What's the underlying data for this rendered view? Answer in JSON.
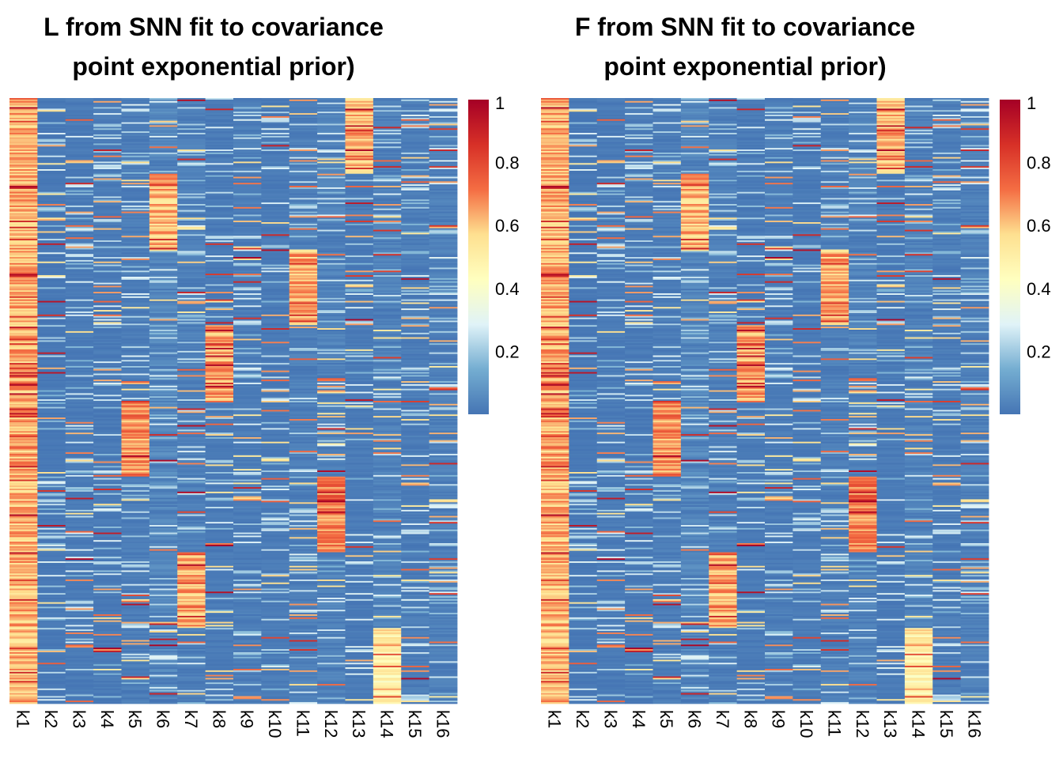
{
  "colors": {
    "scale": [
      "#4575B4",
      "#74ADD1",
      "#E0F3F8",
      "#FFFFBF",
      "#FEE090",
      "#F46D43",
      "#D73027",
      "#A50026"
    ]
  },
  "chart_data": [
    {
      "type": "heatmap",
      "title_line1": "L from SNN fit to covariance",
      "title_line2": "point exponential prior)",
      "columns": [
        "k1",
        "k2",
        "k3",
        "k4",
        "k5",
        "k6",
        "k7",
        "k8",
        "k9",
        "k10",
        "k11",
        "k12",
        "k13",
        "k14",
        "k15",
        "k16"
      ],
      "value_range": [
        0,
        1
      ],
      "colorbar_ticks": [
        "1",
        "0.8",
        "0.6",
        "0.4",
        "0.2"
      ],
      "colorbar_tick_values": [
        1,
        0.8,
        0.6,
        0.4,
        0.2
      ],
      "n_rows": 400,
      "background_levels": [
        0.62,
        0.02,
        0.03,
        0.03,
        0.04,
        0.08,
        0.05,
        0.03,
        0.04,
        0.03,
        0.05,
        0.06,
        0.03,
        0.06,
        0.04,
        0.05
      ],
      "blocks": [
        {
          "column": "k13",
          "row_start": 0,
          "row_end": 50,
          "level": 0.62
        },
        {
          "column": "k6",
          "row_start": 50,
          "row_end": 100,
          "level": 0.62
        },
        {
          "column": "k11",
          "row_start": 100,
          "row_end": 150,
          "level": 0.62
        },
        {
          "column": "k8",
          "row_start": 150,
          "row_end": 200,
          "level": 0.65
        },
        {
          "column": "k5",
          "row_start": 200,
          "row_end": 250,
          "level": 0.68
        },
        {
          "column": "k12",
          "row_start": 250,
          "row_end": 300,
          "level": 0.7
        },
        {
          "column": "k7",
          "row_start": 300,
          "row_end": 350,
          "level": 0.64
        },
        {
          "column": "k14",
          "row_start": 350,
          "row_end": 400,
          "level": 0.5
        }
      ]
    },
    {
      "type": "heatmap",
      "title_line1": "F from SNN fit to covariance",
      "title_line2": "point exponential prior)",
      "columns": [
        "k1",
        "k2",
        "k3",
        "k4",
        "k5",
        "k6",
        "k7",
        "k8",
        "k9",
        "k10",
        "k11",
        "k12",
        "k13",
        "k14",
        "k15",
        "k16"
      ],
      "value_range": [
        0,
        1
      ],
      "colorbar_ticks": [
        "1",
        "0.8",
        "0.6",
        "0.4",
        "0.2"
      ],
      "colorbar_tick_values": [
        1,
        0.8,
        0.6,
        0.4,
        0.2
      ],
      "n_rows": 400,
      "background_levels": [
        0.62,
        0.02,
        0.03,
        0.03,
        0.04,
        0.08,
        0.05,
        0.03,
        0.04,
        0.03,
        0.05,
        0.06,
        0.03,
        0.06,
        0.04,
        0.05
      ],
      "blocks": [
        {
          "column": "k13",
          "row_start": 0,
          "row_end": 50,
          "level": 0.62
        },
        {
          "column": "k6",
          "row_start": 50,
          "row_end": 100,
          "level": 0.62
        },
        {
          "column": "k11",
          "row_start": 100,
          "row_end": 150,
          "level": 0.62
        },
        {
          "column": "k8",
          "row_start": 150,
          "row_end": 200,
          "level": 0.65
        },
        {
          "column": "k5",
          "row_start": 200,
          "row_end": 250,
          "level": 0.68
        },
        {
          "column": "k12",
          "row_start": 250,
          "row_end": 300,
          "level": 0.7
        },
        {
          "column": "k7",
          "row_start": 300,
          "row_end": 350,
          "level": 0.64
        },
        {
          "column": "k14",
          "row_start": 350,
          "row_end": 400,
          "level": 0.5
        }
      ]
    }
  ]
}
